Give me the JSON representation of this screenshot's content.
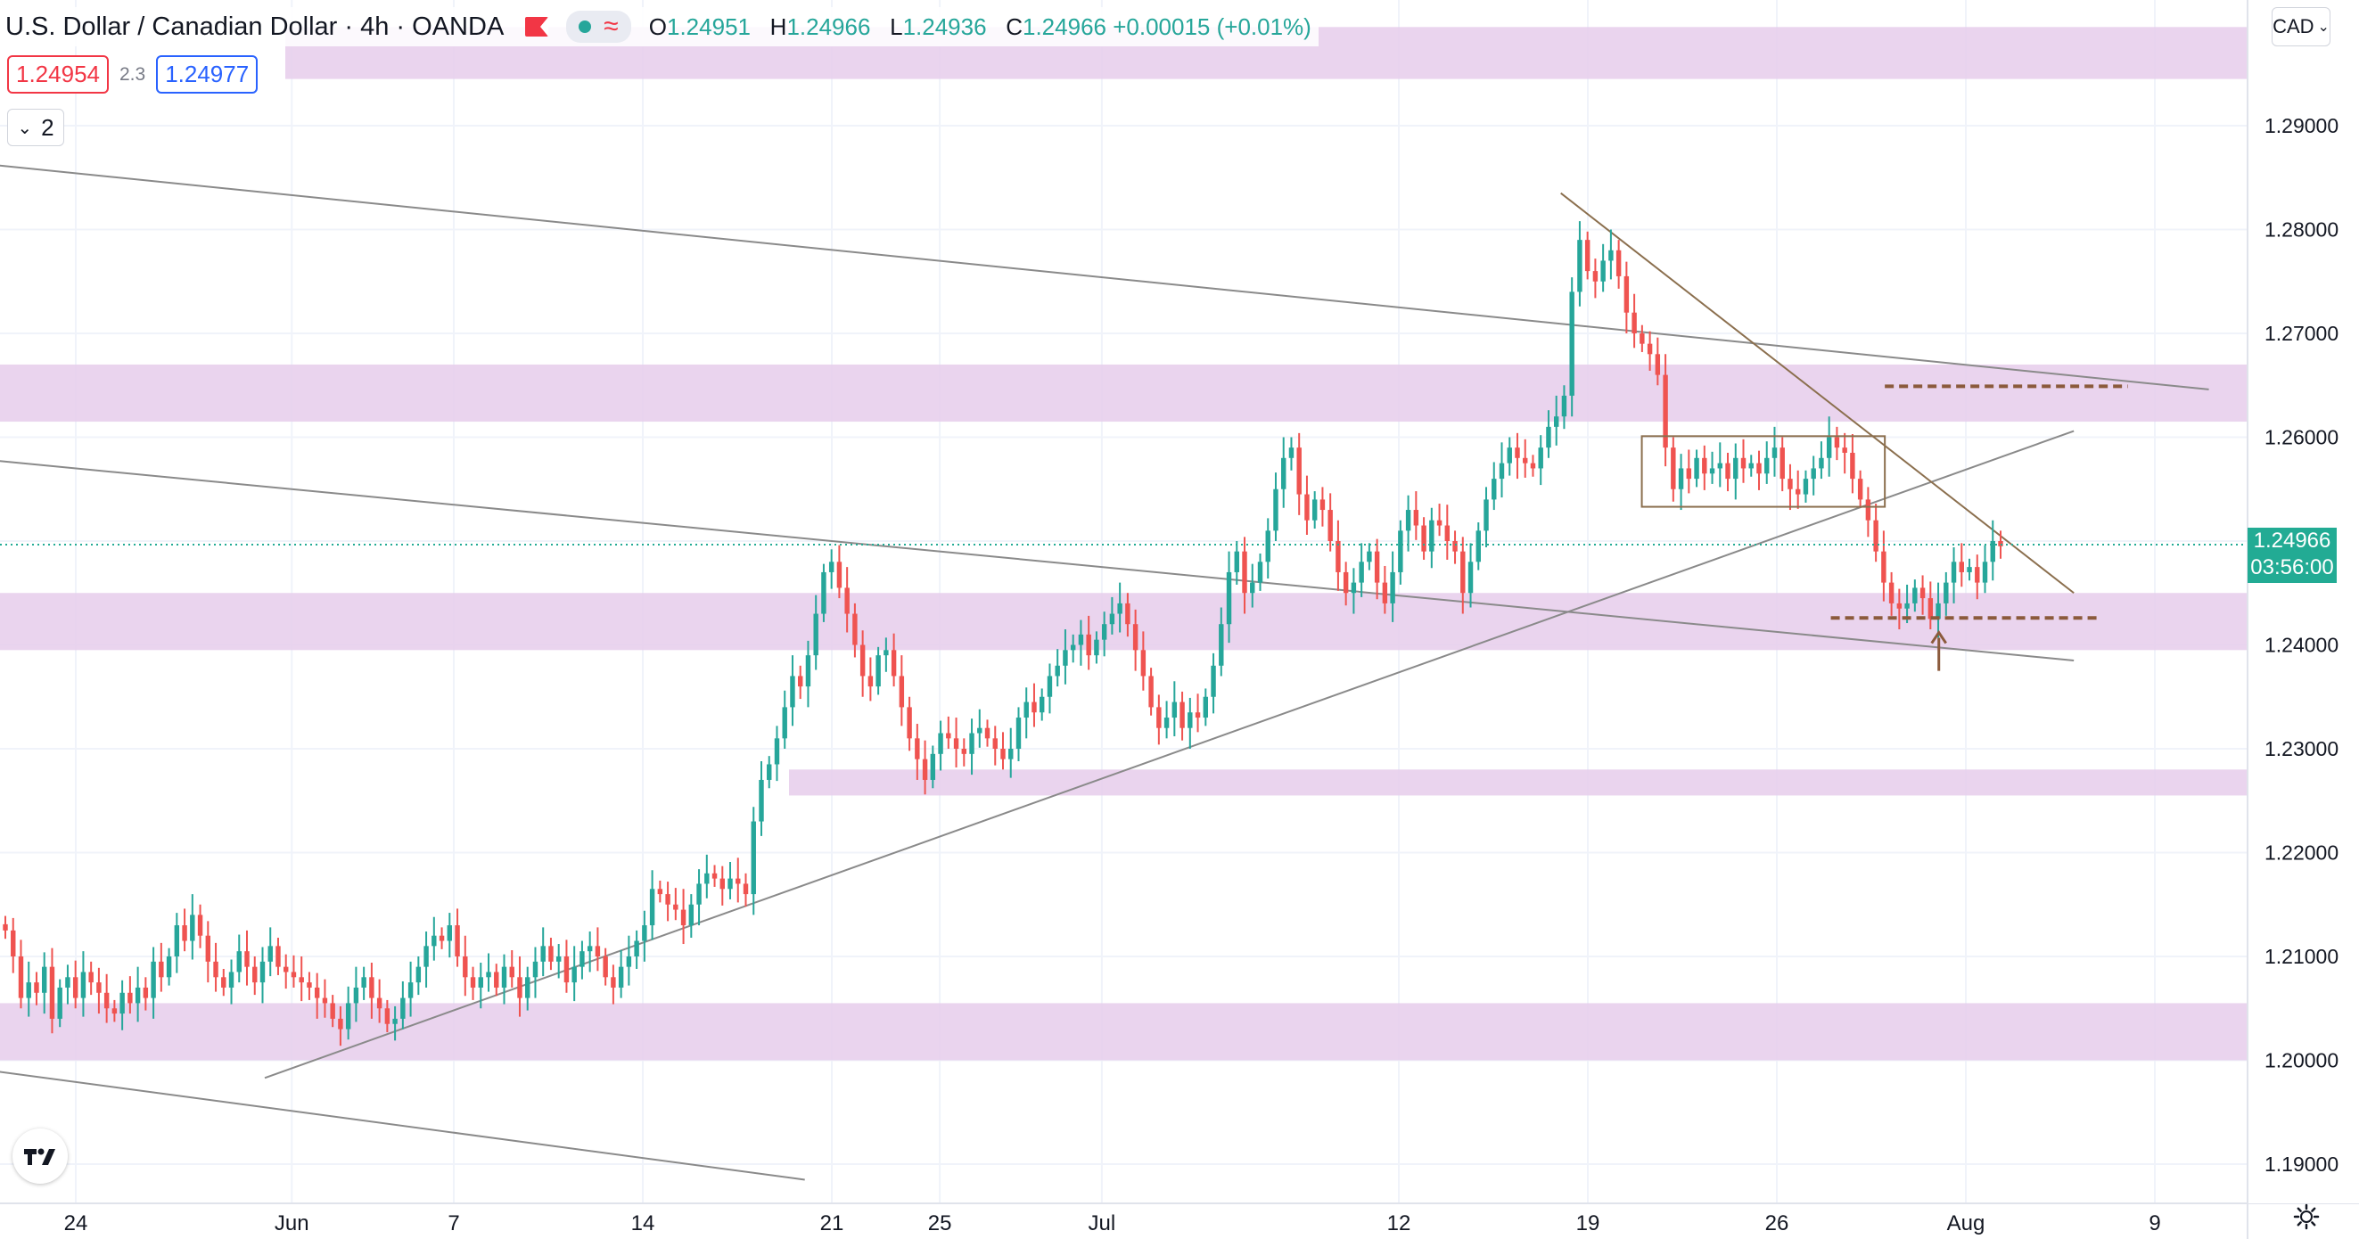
{
  "header": {
    "symbol": "U.S. Dollar / Canadian Dollar",
    "interval": "4h",
    "broker": "OANDA",
    "ohlc": {
      "o_label": "O",
      "o": "1.24951",
      "h_label": "H",
      "h": "1.24966",
      "l_label": "L",
      "l": "1.24936",
      "c_label": "C",
      "c": "1.24966",
      "change": "+0.00015 (+0.01%)"
    }
  },
  "trade": {
    "sell": "1.24954",
    "spread": "2.3",
    "buy": "1.24977"
  },
  "indicators_toggle": {
    "count": "2"
  },
  "currency_button": {
    "label": "CAD"
  },
  "last_price": {
    "price": "1.24966",
    "countdown": "03:56:00"
  },
  "colors": {
    "up": "#26a69a",
    "down": "#ef5350",
    "zone": "#e6cdeb",
    "trend": "#8a8a8a",
    "brown": "#8b5a3c",
    "last": "#22ab94"
  },
  "chart_data": {
    "type": "candlestick",
    "symbol": "USDCAD",
    "timeframe": "4h",
    "y_ticks": [
      1.29,
      1.28,
      1.27,
      1.26,
      1.25,
      1.24,
      1.23,
      1.22,
      1.21,
      1.2,
      1.19
    ],
    "y_tick_labels": [
      "1.29000",
      "1.28000",
      "1.27000",
      "1.26000",
      "1.24000",
      "1.23000",
      "1.22000",
      "1.21000",
      "1.20000",
      "1.19000"
    ],
    "ylim": [
      1.185,
      1.3
    ],
    "x_tick_labels": [
      "24",
      "Jun",
      "7",
      "14",
      "21",
      "25",
      "Jul",
      "12",
      "19",
      "26",
      "Aug",
      "9"
    ],
    "x_tick_dates": [
      "2021-05-24",
      "2021-06-01",
      "2021-06-07",
      "2021-06-14",
      "2021-06-21",
      "2021-06-25",
      "2021-07-01",
      "2021-07-12",
      "2021-07-19",
      "2021-07-26",
      "2021-08-02",
      "2021-08-09"
    ],
    "support_resistance_zones": [
      {
        "low": 1.2945,
        "high": 1.2995
      },
      {
        "low": 1.2615,
        "high": 1.267
      },
      {
        "low": 1.2395,
        "high": 1.245
      },
      {
        "low": 1.2255,
        "high": 1.228
      },
      {
        "low": 1.2,
        "high": 1.2055
      }
    ],
    "trendlines": [
      {
        "from": [
          "2021-05-18",
          1.287
        ],
        "to": [
          "2021-08-11",
          1.2646
        ]
      },
      {
        "from": [
          "2021-05-18",
          1.2585
        ],
        "to": [
          "2021-08-06",
          1.2385
        ]
      },
      {
        "from": [
          "2021-05-18",
          1.2
        ],
        "to": [
          "2021-06-20",
          1.1885
        ]
      },
      {
        "from": [
          "2021-05-31",
          1.1983
        ],
        "to": [
          "2021-08-06",
          1.2606
        ]
      },
      {
        "from": [
          "2021-07-18",
          1.2835
        ],
        "to": [
          "2021-08-06",
          1.245
        ]
      }
    ],
    "dashed_levels": [
      {
        "value": 1.2649,
        "from": "2021-07-30",
        "to": "2021-08-08"
      },
      {
        "value": 1.2426,
        "from": "2021-07-28",
        "to": "2021-08-07"
      }
    ],
    "consolidation_box": {
      "from": "2021-07-21",
      "to": "2021-07-30",
      "low": 1.2533,
      "high": 1.2601
    },
    "arrow": {
      "date": "2021-08-01",
      "from": 1.2375,
      "to": 1.2412
    },
    "last_price_line": 1.24966,
    "closes": [
      1.2125,
      1.21,
      1.206,
      1.2075,
      1.2065,
      1.209,
      1.204,
      1.207,
      1.208,
      1.206,
      1.2085,
      1.2075,
      1.2065,
      1.205,
      1.2045,
      1.2065,
      1.2055,
      1.207,
      1.206,
      1.2095,
      1.208,
      1.21,
      1.213,
      1.2115,
      1.214,
      1.212,
      1.2095,
      1.208,
      1.207,
      1.2085,
      1.2105,
      1.209,
      1.2075,
      1.2095,
      1.211,
      1.209,
      1.2085,
      1.208,
      1.2075,
      1.207,
      1.206,
      1.2055,
      1.204,
      1.203,
      1.2055,
      1.207,
      1.208,
      1.206,
      1.205,
      1.2035,
      1.204,
      1.206,
      1.2075,
      1.209,
      1.211,
      1.212,
      1.2115,
      1.213,
      1.21,
      1.208,
      1.207,
      1.208,
      1.2085,
      1.207,
      1.209,
      1.208,
      1.206,
      1.208,
      1.2095,
      1.211,
      1.2095,
      1.21,
      1.2075,
      1.209,
      1.2105,
      1.211,
      1.21,
      1.208,
      1.207,
      1.209,
      1.21,
      1.2115,
      1.213,
      1.2165,
      1.216,
      1.215,
      1.2145,
      1.213,
      1.215,
      1.217,
      1.218,
      1.2175,
      1.2165,
      1.2175,
      1.217,
      1.216,
      1.223,
      1.227,
      1.2285,
      1.231,
      1.234,
      1.237,
      1.236,
      1.239,
      1.243,
      1.247,
      1.248,
      1.2455,
      1.243,
      1.24,
      1.237,
      1.236,
      1.239,
      1.2395,
      1.237,
      1.234,
      1.231,
      1.229,
      1.227,
      1.2295,
      1.2315,
      1.231,
      1.23,
      1.2295,
      1.2315,
      1.232,
      1.231,
      1.23,
      1.229,
      1.23,
      1.233,
      1.2345,
      1.2335,
      1.235,
      1.237,
      1.238,
      1.2395,
      1.24,
      1.241,
      1.239,
      1.2405,
      1.242,
      1.243,
      1.244,
      1.242,
      1.2395,
      1.237,
      1.234,
      1.232,
      1.233,
      1.2345,
      1.232,
      1.2335,
      1.233,
      1.235,
      1.238,
      1.242,
      1.247,
      1.249,
      1.245,
      1.246,
      1.248,
      1.251,
      1.255,
      1.258,
      1.259,
      1.2545,
      1.252,
      1.254,
      1.253,
      1.25,
      1.247,
      1.245,
      1.246,
      1.248,
      1.249,
      1.246,
      1.244,
      1.247,
      1.251,
      1.253,
      1.2515,
      1.249,
      1.252,
      1.2515,
      1.25,
      1.249,
      1.245,
      1.248,
      1.251,
      1.254,
      1.256,
      1.2575,
      1.259,
      1.258,
      1.2575,
      1.257,
      1.259,
      1.261,
      1.262,
      1.264,
      1.274,
      1.279,
      1.276,
      1.275,
      1.277,
      1.278,
      1.2755,
      1.272,
      1.27,
      1.269,
      1.268,
      1.266,
      1.259,
      1.255,
      1.257,
      1.256,
      1.258,
      1.2565,
      1.257,
      1.2575,
      1.256,
      1.258,
      1.257,
      1.2575,
      1.2565,
      1.258,
      1.259,
      1.256,
      1.255,
      1.2545,
      1.256,
      1.257,
      1.258,
      1.26,
      1.259,
      1.2585,
      1.256,
      1.254,
      1.252,
      1.249,
      1.246,
      1.244,
      1.2435,
      1.244,
      1.2455,
      1.2445,
      1.2425,
      1.244,
      1.246,
      1.248,
      1.247,
      1.2475,
      1.246,
      1.248,
      1.25,
      1.2495
    ]
  }
}
